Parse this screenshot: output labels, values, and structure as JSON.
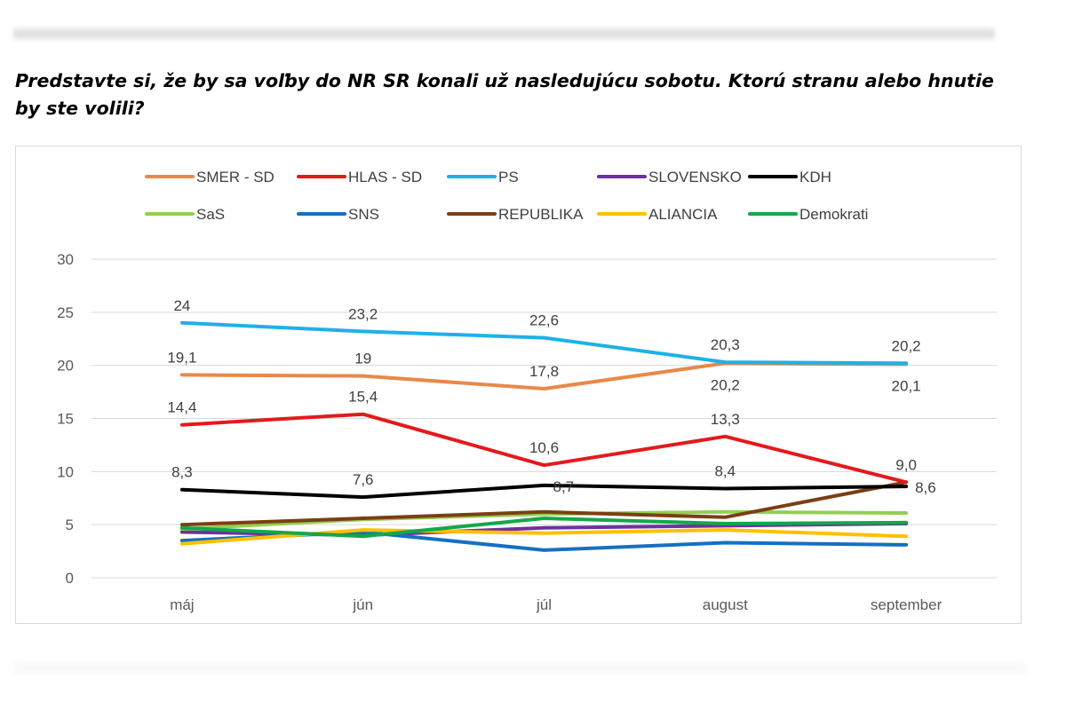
{
  "question": "Predstavte si, že by sa voľby do NR SR konali už nasledujúcu sobotu. Ktorú stranu alebo hnutie by ste volili?",
  "chart_data": {
    "type": "line",
    "categories": [
      "máj",
      "jún",
      "júl",
      "august",
      "september"
    ],
    "ylim": [
      0,
      30
    ],
    "yticks": [
      0,
      5,
      10,
      15,
      20,
      25,
      30
    ],
    "grid": true,
    "legend": "top",
    "series": [
      {
        "name": "SMER - SD",
        "color": "#E8894A",
        "values": [
          19.1,
          19,
          17.8,
          20.2,
          20.1
        ],
        "labels": [
          "19,1",
          "19",
          "17,8",
          "20,2",
          "20,1"
        ],
        "label_pos": [
          "above",
          "above",
          "above",
          "below",
          "below"
        ]
      },
      {
        "name": "HLAS - SD",
        "color": "#E31A1C",
        "values": [
          14.4,
          15.4,
          10.6,
          13.3,
          9.0
        ],
        "labels": [
          "14,4",
          "15,4",
          "10,6",
          "13,3",
          "9,0"
        ],
        "label_pos": [
          "above",
          "above",
          "above",
          "above",
          "above"
        ]
      },
      {
        "name": "PS",
        "color": "#1EB1E8",
        "values": [
          24,
          23.2,
          22.6,
          20.3,
          20.2
        ],
        "labels": [
          "24",
          "23,2",
          "22,6",
          "20,3",
          "20,2"
        ],
        "label_pos": [
          "above",
          "above",
          "above",
          "above",
          "above"
        ]
      },
      {
        "name": "SLOVENSKO",
        "color": "#7030A0",
        "values": [
          4.3,
          4.0,
          4.7,
          4.9,
          5.1
        ],
        "labels": [],
        "label_pos": []
      },
      {
        "name": "KDH",
        "color": "#000000",
        "values": [
          8.3,
          7.6,
          8.7,
          8.4,
          8.6
        ],
        "labels": [
          "8,3",
          "7,6",
          "8,7",
          "8,4",
          "8,6"
        ],
        "label_pos": [
          "above",
          "above",
          "right",
          "above",
          "right"
        ]
      },
      {
        "name": "SaS",
        "color": "#92D050",
        "values": [
          4.6,
          5.5,
          6.0,
          6.2,
          6.1
        ],
        "labels": [],
        "label_pos": []
      },
      {
        "name": "SNS",
        "color": "#1570C0",
        "values": [
          3.5,
          4.3,
          2.6,
          3.3,
          3.1
        ],
        "labels": [],
        "label_pos": []
      },
      {
        "name": "REPUBLIKA",
        "color": "#7B3F14",
        "values": [
          5.0,
          5.6,
          6.2,
          5.7,
          9.0
        ],
        "labels": [],
        "label_pos": []
      },
      {
        "name": "ALIANCIA",
        "color": "#FFC000",
        "values": [
          3.2,
          4.5,
          4.2,
          4.5,
          3.9
        ],
        "labels": [],
        "label_pos": []
      },
      {
        "name": "Demokrati",
        "color": "#12A84A",
        "values": [
          4.7,
          3.9,
          5.6,
          5.1,
          5.2
        ],
        "labels": [],
        "label_pos": []
      }
    ]
  }
}
